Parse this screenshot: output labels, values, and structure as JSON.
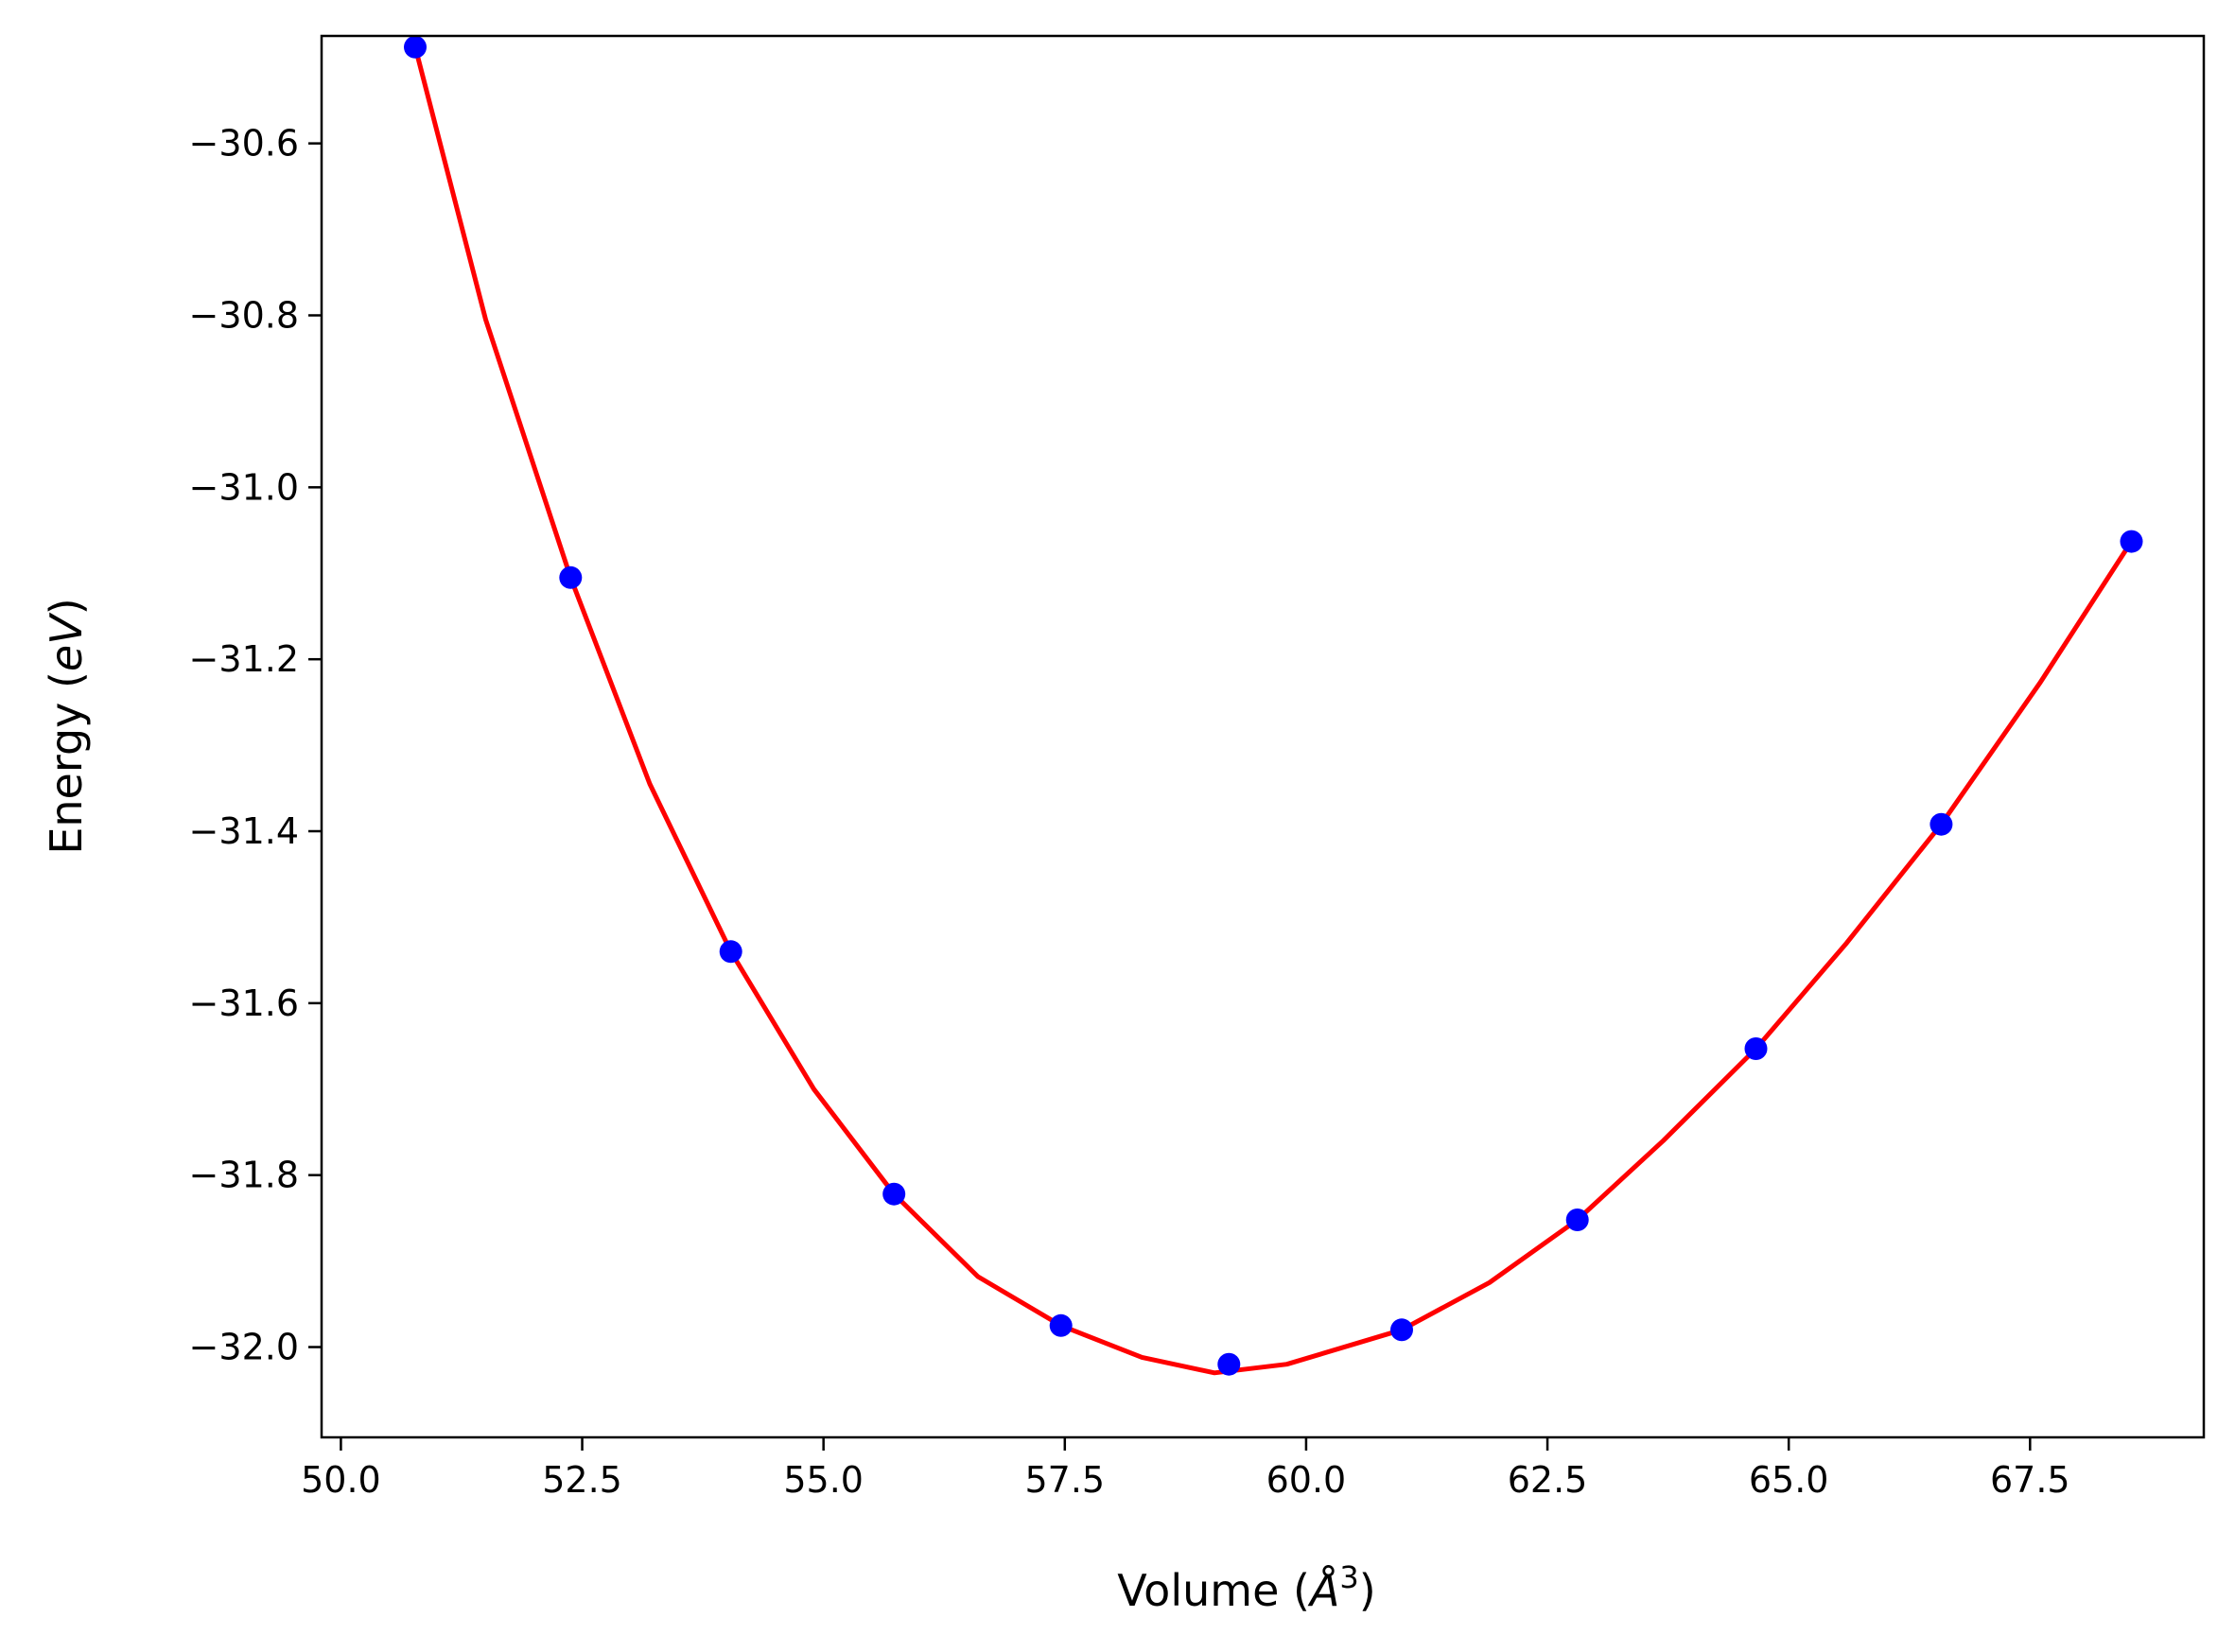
{
  "chart_data": {
    "type": "scatter",
    "title": "",
    "xlabel": "Volume ($\\AA^3$)",
    "xlabel_parts": {
      "prefix": "Volume (",
      "symbol": "Å",
      "sup": "3",
      "suffix": ")"
    },
    "ylabel": "Energy ($eV$)",
    "ylabel_parts": {
      "prefix": "Energy (",
      "italic": "eV",
      "suffix": ")"
    },
    "xlim": [
      49.8,
      69.3
    ],
    "ylim": [
      -32.105,
      -30.475
    ],
    "xticks": [
      50.0,
      52.5,
      55.0,
      57.5,
      60.0,
      62.5,
      65.0,
      67.5
    ],
    "xtick_labels": [
      "50.0",
      "52.5",
      "55.0",
      "57.5",
      "60.0",
      "62.5",
      "65.0",
      "67.5"
    ],
    "yticks": [
      -30.6,
      -30.8,
      -31.0,
      -31.2,
      -31.4,
      -31.6,
      -31.8,
      -32.0
    ],
    "ytick_labels": [
      "−30.6",
      "−30.8",
      "−31.0",
      "−31.2",
      "−31.4",
      "−31.6",
      "−31.8",
      "−32.0"
    ],
    "grid": false,
    "legend": "none",
    "series": [
      {
        "name": "data",
        "kind": "scatter",
        "color": "#0000ff",
        "x": [
          50.77,
          52.38,
          54.04,
          55.73,
          57.46,
          59.2,
          60.99,
          62.81,
          64.66,
          66.58,
          68.55
        ],
        "y": [
          -30.488,
          -31.105,
          -31.54,
          -31.822,
          -31.975,
          -32.02,
          -31.98,
          -31.852,
          -31.653,
          -31.392,
          -31.063
        ]
      },
      {
        "name": "fit",
        "kind": "line",
        "color": "#ff0000",
        "x": [
          50.77,
          51.5,
          52.38,
          53.2,
          54.04,
          54.9,
          55.73,
          56.6,
          57.46,
          58.3,
          59.05,
          59.8,
          60.99,
          61.9,
          62.81,
          63.7,
          64.66,
          65.6,
          66.58,
          67.6,
          68.55
        ],
        "y": [
          -30.488,
          -30.805,
          -31.105,
          -31.345,
          -31.54,
          -31.7,
          -31.822,
          -31.918,
          -31.975,
          -32.012,
          -32.03,
          -32.02,
          -31.98,
          -31.925,
          -31.852,
          -31.76,
          -31.653,
          -31.53,
          -31.392,
          -31.228,
          -31.063
        ]
      }
    ]
  }
}
